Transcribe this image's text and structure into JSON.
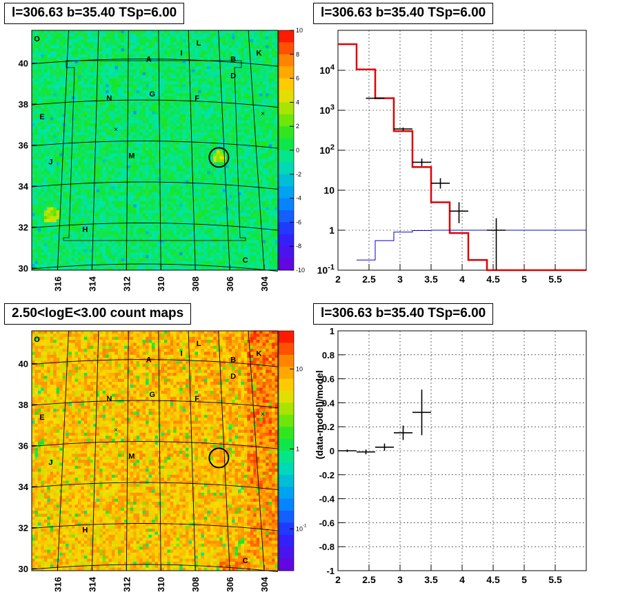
{
  "panels": {
    "map_top_title": "l=306.63 b=35.40 TSp=6.00",
    "spec_title": "l=306.63 b=35.40 TSp=6.00",
    "map_bottom_title": "2.50<logE<3.00 count maps",
    "resid_title": "l=306.63 b=35.40 TSp=6.00"
  },
  "colors": {
    "model_line": "#e00000",
    "background_line": "#0000cc",
    "data": "#000000"
  },
  "chart_data": [
    {
      "type": "heatmap",
      "title": "l=306.63 b=35.40 TSp=6.00",
      "x_ticks": [
        "316",
        "314",
        "312",
        "310",
        "308",
        "306",
        "304"
      ],
      "y_ticks": [
        "30",
        "32",
        "34",
        "36",
        "38",
        "40"
      ],
      "xlim": [
        317.5,
        303.2
      ],
      "ylim": [
        29.9,
        41.6
      ],
      "colorbar": {
        "min": -10,
        "max": 10,
        "scale": "linear",
        "ticks": [
          "10",
          "8",
          "6",
          "4",
          "2",
          "0",
          "-2",
          "-4",
          "-6",
          "-8",
          "-10"
        ]
      },
      "source_circle": {
        "l": 306.63,
        "b": 35.4
      },
      "labels": [
        {
          "text": "O",
          "l": 317.2,
          "b": 41.2
        },
        {
          "text": "L",
          "l": 307.8,
          "b": 41.0
        },
        {
          "text": "K",
          "l": 304.3,
          "b": 40.5
        },
        {
          "text": "I",
          "l": 308.8,
          "b": 40.5
        },
        {
          "text": "A",
          "l": 310.7,
          "b": 40.2
        },
        {
          "text": "B",
          "l": 305.8,
          "b": 40.2
        },
        {
          "text": "D",
          "l": 305.8,
          "b": 39.4
        },
        {
          "text": "G",
          "l": 310.5,
          "b": 38.5
        },
        {
          "text": "N",
          "l": 313.0,
          "b": 38.3
        },
        {
          "text": "F",
          "l": 307.9,
          "b": 38.3
        },
        {
          "text": "E",
          "l": 316.9,
          "b": 37.4
        },
        {
          "text": "M",
          "l": 311.7,
          "b": 35.5
        },
        {
          "text": "J",
          "l": 316.4,
          "b": 35.2
        },
        {
          "text": "H",
          "l": 314.4,
          "b": 31.9
        },
        {
          "text": "C",
          "l": 305.1,
          "b": 30.4
        }
      ]
    },
    {
      "type": "line",
      "title": "l=306.63 b=35.40 TSp=6.00",
      "xlabel": "",
      "ylabel": "",
      "xlim": [
        2,
        6
      ],
      "ylim": [
        0.1,
        100000
      ],
      "yscale": "log",
      "x_ticks": [
        "2",
        "2.5",
        "3",
        "3.5",
        "4",
        "4.5",
        "5",
        "5.5"
      ],
      "y_ticks": [
        "10^-1",
        "1",
        "10",
        "10^2",
        "10^3",
        "10^4"
      ],
      "grid": true,
      "series": [
        {
          "style": "step",
          "color": "#e00000",
          "edges": [
            2.0,
            2.3,
            2.6,
            2.9,
            3.2,
            3.5,
            3.8,
            4.1,
            4.4,
            4.7,
            6.0
          ],
          "values": [
            45000,
            10500,
            2000,
            300,
            38,
            5,
            0.85,
            0.18,
            0.1,
            0.1
          ]
        },
        {
          "style": "step",
          "color": "#0000cc",
          "edges": [
            2.3,
            2.6,
            2.9,
            3.2,
            3.5,
            3.8,
            4.1,
            4.4,
            4.7,
            6.0
          ],
          "values": [
            0.18,
            0.55,
            0.9,
            0.98,
            1.0,
            1.0,
            1.0,
            1.0,
            1.0
          ]
        },
        {
          "style": "errorbar",
          "color": "#000000",
          "points": [
            {
              "x": 2.6,
              "xerr": 0.15,
              "y": 2000,
              "ylo": 1910,
              "yhi": 2090
            },
            {
              "x": 3.05,
              "xerr": 0.15,
              "y": 340,
              "ylo": 310,
              "yhi": 370
            },
            {
              "x": 3.35,
              "xerr": 0.15,
              "y": 50,
              "ylo": 40,
              "yhi": 62
            },
            {
              "x": 3.65,
              "xerr": 0.15,
              "y": 15,
              "ylo": 11,
              "yhi": 20
            },
            {
              "x": 3.95,
              "xerr": 0.15,
              "y": 3,
              "ylo": 1.5,
              "yhi": 5
            },
            {
              "x": 4.55,
              "xerr": 0.15,
              "y": 1,
              "ylo": 0.1,
              "yhi": 2
            }
          ]
        }
      ]
    },
    {
      "type": "heatmap",
      "title": "2.50<logE<3.00 count maps",
      "x_ticks": [
        "316",
        "314",
        "312",
        "310",
        "308",
        "306",
        "304"
      ],
      "y_ticks": [
        "30",
        "32",
        "34",
        "36",
        "38",
        "40"
      ],
      "xlim": [
        317.5,
        303.2
      ],
      "ylim": [
        29.9,
        41.6
      ],
      "colorbar": {
        "min": 0.03,
        "max": 30,
        "scale": "log",
        "ticks": [
          "10",
          "1",
          "10^-1"
        ]
      },
      "source_circle": {
        "l": 306.63,
        "b": 35.4
      }
    },
    {
      "type": "scatter",
      "title": "l=306.63 b=35.40 TSp=6.00",
      "xlabel": "",
      "ylabel": "(data-model)/model",
      "xlim": [
        2,
        6
      ],
      "ylim": [
        -1,
        1
      ],
      "x_ticks": [
        "2",
        "2.5",
        "3",
        "3.5",
        "4",
        "4.5",
        "5",
        "5.5"
      ],
      "y_ticks": [
        "-1",
        "-0.8",
        "-0.6",
        "-0.4",
        "-0.2",
        "0",
        "0.2",
        "0.4",
        "0.6",
        "0.8",
        "1"
      ],
      "grid": true,
      "points": [
        {
          "x": 2.15,
          "xerr": 0.15,
          "y": 0.0,
          "yerr": 0.01
        },
        {
          "x": 2.45,
          "xerr": 0.15,
          "y": -0.01,
          "yerr": 0.02
        },
        {
          "x": 2.75,
          "xerr": 0.15,
          "y": 0.03,
          "yerr": 0.03
        },
        {
          "x": 3.05,
          "xerr": 0.15,
          "y": 0.15,
          "yerr": 0.06
        },
        {
          "x": 3.35,
          "xerr": 0.15,
          "y": 0.32,
          "yerr": 0.19
        }
      ]
    }
  ]
}
